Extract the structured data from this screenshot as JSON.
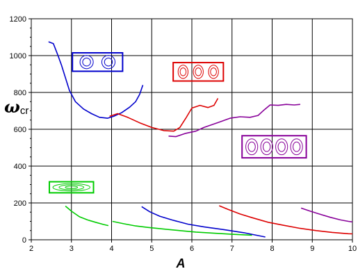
{
  "chart_data": {
    "type": "line",
    "title": "",
    "xlabel": "A",
    "ylabel": {
      "main": "ω",
      "subscript": "cr"
    },
    "xlim": [
      2,
      10
    ],
    "ylim": [
      0,
      1200
    ],
    "xticks": [
      "2",
      "3",
      "4",
      "5",
      "6",
      "7",
      "8",
      "9",
      "10"
    ],
    "yticks": [
      "0",
      "200",
      "400",
      "600",
      "800",
      "1000",
      "1200"
    ],
    "grid": true,
    "series": [
      {
        "color": "#0000cc",
        "points": [
          [
            2.43,
            1075
          ],
          [
            2.55,
            1065
          ],
          [
            2.65,
            1010
          ],
          [
            2.75,
            950
          ],
          [
            2.85,
            880
          ],
          [
            2.95,
            810
          ],
          [
            3.1,
            750
          ],
          [
            3.3,
            710
          ],
          [
            3.5,
            685
          ],
          [
            3.7,
            665
          ],
          [
            3.9,
            660
          ],
          [
            4.05,
            670
          ],
          [
            4.25,
            690
          ],
          [
            4.45,
            720
          ],
          [
            4.6,
            750
          ],
          [
            4.7,
            790
          ],
          [
            4.78,
            840
          ]
        ]
      },
      {
        "color": "#dd0000",
        "points": [
          [
            3.95,
            670
          ],
          [
            4.15,
            685
          ],
          [
            4.4,
            665
          ],
          [
            4.7,
            635
          ],
          [
            5.0,
            610
          ],
          [
            5.3,
            593
          ],
          [
            5.55,
            590
          ],
          [
            5.7,
            610
          ],
          [
            5.85,
            660
          ],
          [
            6.0,
            715
          ],
          [
            6.2,
            730
          ],
          [
            6.4,
            718
          ],
          [
            6.55,
            730
          ],
          [
            6.65,
            768
          ]
        ]
      },
      {
        "color": "#880099",
        "points": [
          [
            5.42,
            563
          ],
          [
            5.6,
            560
          ],
          [
            5.85,
            578
          ],
          [
            6.1,
            590
          ],
          [
            6.3,
            610
          ],
          [
            6.5,
            625
          ],
          [
            6.7,
            640
          ],
          [
            6.95,
            660
          ],
          [
            7.2,
            668
          ],
          [
            7.45,
            665
          ],
          [
            7.65,
            675
          ],
          [
            7.8,
            705
          ],
          [
            7.95,
            732
          ],
          [
            8.15,
            730
          ],
          [
            8.35,
            735
          ],
          [
            8.55,
            732
          ],
          [
            8.7,
            735
          ]
        ]
      },
      {
        "color": "#00cc00",
        "points": [
          [
            2.85,
            183
          ],
          [
            3.0,
            155
          ],
          [
            3.2,
            125
          ],
          [
            3.4,
            108
          ],
          [
            3.6,
            95
          ],
          [
            3.8,
            83
          ],
          [
            3.92,
            77
          ]
        ]
      },
      {
        "color": "#00cc00",
        "points": [
          [
            4.02,
            100
          ],
          [
            4.3,
            87
          ],
          [
            4.6,
            75
          ],
          [
            4.9,
            67
          ],
          [
            5.3,
            58
          ],
          [
            5.7,
            50
          ],
          [
            6.1,
            42
          ],
          [
            6.6,
            35
          ],
          [
            7.0,
            30
          ],
          [
            7.5,
            25
          ]
        ]
      },
      {
        "color": "#0000cc",
        "points": [
          [
            4.75,
            180
          ],
          [
            4.95,
            152
          ],
          [
            5.2,
            128
          ],
          [
            5.5,
            108
          ],
          [
            5.9,
            85
          ],
          [
            6.3,
            70
          ],
          [
            6.8,
            55
          ],
          [
            7.3,
            38
          ],
          [
            7.6,
            25
          ],
          [
            7.83,
            15
          ]
        ]
      },
      {
        "color": "#dd0000",
        "points": [
          [
            6.68,
            185
          ],
          [
            6.9,
            165
          ],
          [
            7.2,
            140
          ],
          [
            7.5,
            120
          ],
          [
            7.9,
            95
          ],
          [
            8.3,
            78
          ],
          [
            8.7,
            62
          ],
          [
            9.1,
            50
          ],
          [
            9.5,
            40
          ],
          [
            9.9,
            33
          ],
          [
            10.0,
            32
          ]
        ]
      },
      {
        "color": "#880099",
        "points": [
          [
            8.72,
            172
          ],
          [
            8.95,
            155
          ],
          [
            9.2,
            138
          ],
          [
            9.45,
            122
          ],
          [
            9.7,
            108
          ],
          [
            9.9,
            100
          ],
          [
            10.0,
            97
          ]
        ]
      }
    ],
    "legend_icons": [
      {
        "color": "#0000cc",
        "rings": 2,
        "x": 3.65,
        "y": 965,
        "w": 1.25,
        "h": 100,
        "style": "circles-concentric"
      },
      {
        "color": "#dd0000",
        "rings": 3,
        "x": 6.16,
        "y": 912,
        "w": 1.25,
        "h": 100,
        "style": "ovals-concentric"
      },
      {
        "color": "#880099",
        "rings": 4,
        "x": 8.05,
        "y": 505,
        "w": 1.6,
        "h": 120,
        "style": "ovals-concentric"
      },
      {
        "color": "#00cc00",
        "rings": 1,
        "x": 3.0,
        "y": 285,
        "w": 1.1,
        "h": 60,
        "style": "ellipse-concentric"
      }
    ]
  }
}
